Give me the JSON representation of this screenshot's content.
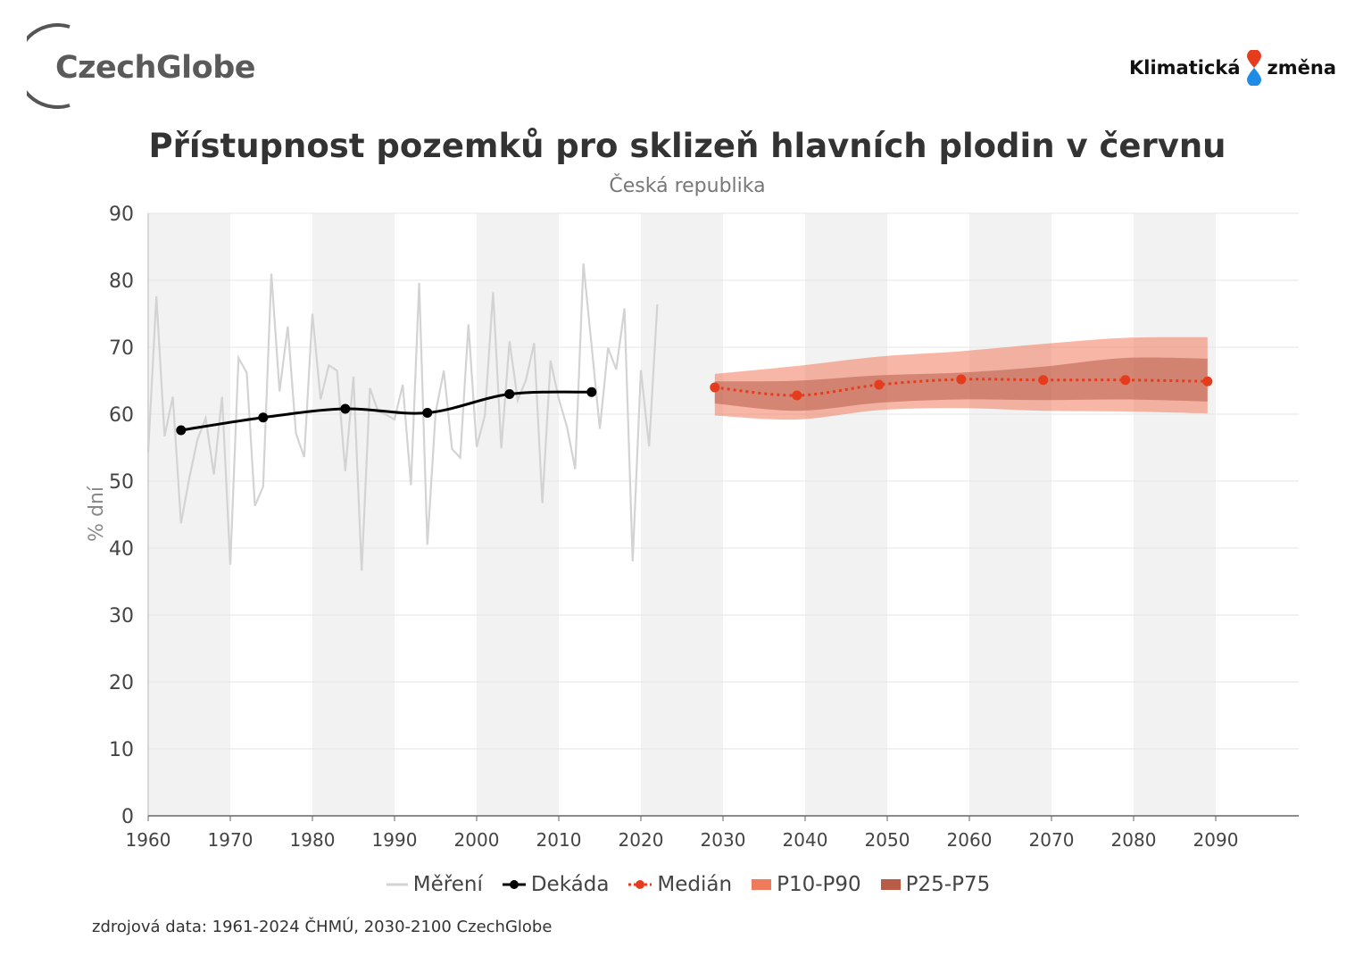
{
  "logos": {
    "left_text": "CzechGlobe",
    "right_text_1": "Klimatická",
    "right_text_2": "změna",
    "drop_top_color": "#e63c1e",
    "drop_bottom_color": "#1e8ce6"
  },
  "source_note": "zdrojová data: 1961-2024 ČHMÚ, 2030-2100 CzechGlobe",
  "chart_data": {
    "type": "line",
    "title": "Přístupnost pozemků pro sklizeň hlavních plodin v červnu",
    "subtitle": "Česká republika",
    "ylabel": "% dní",
    "xlabel": "",
    "xlim": [
      1960,
      2100
    ],
    "ylim": [
      0,
      90
    ],
    "x_ticks": [
      1960,
      1970,
      1980,
      1990,
      2000,
      2010,
      2020,
      2030,
      2040,
      2050,
      2060,
      2070,
      2080,
      2090
    ],
    "y_ticks": [
      0,
      10,
      20,
      30,
      40,
      50,
      60,
      70,
      80,
      90
    ],
    "grid": true,
    "alternating_decade_bands": true,
    "legend_position": "bottom",
    "legend": [
      "Měření",
      "Dekáda",
      "Medián",
      "P10-P90",
      "P25-P75"
    ],
    "series": [
      {
        "name": "Měření",
        "color": "#d3d3d3",
        "x": [
          1961,
          1962,
          1963,
          1964,
          1965,
          1966,
          1967,
          1968,
          1969,
          1970,
          1971,
          1972,
          1973,
          1974,
          1975,
          1976,
          1977,
          1978,
          1979,
          1980,
          1981,
          1982,
          1983,
          1984,
          1985,
          1986,
          1987,
          1988,
          1989,
          1990,
          1991,
          1992,
          1993,
          1994,
          1995,
          1996,
          1997,
          1998,
          1999,
          2000,
          2001,
          2002,
          2003,
          2004,
          2005,
          2006,
          2007,
          2008,
          2009,
          2010,
          2011,
          2012,
          2013,
          2014,
          2015,
          2016,
          2017,
          2018,
          2019,
          2020,
          2021,
          2022,
          2023
        ],
        "values": [
          54.3,
          77.6,
          56.7,
          62.6,
          43.7,
          50.4,
          56.2,
          59.4,
          51.0,
          62.6,
          37.5,
          68.4,
          66.2,
          46.3,
          49.2,
          81.0,
          63.4,
          73.1,
          57.1,
          53.6,
          75.0,
          62.2,
          67.3,
          66.5,
          51.5,
          65.6,
          36.6,
          63.9,
          60.4,
          59.9,
          59.2,
          64.4,
          49.4,
          79.6,
          40.5,
          60.2,
          66.5,
          54.8,
          53.5,
          73.4,
          55.1,
          59.8,
          78.2,
          54.9,
          70.9,
          62.1,
          65.1,
          70.6,
          46.7,
          68.0,
          62.3,
          58.1,
          51.8,
          82.5,
          70.2,
          57.8,
          69.9,
          66.7,
          75.8,
          38.0,
          66.6,
          55.2,
          76.4
        ]
      },
      {
        "name": "Dekáda",
        "color": "#000000",
        "x": [
          1965,
          1975,
          1985,
          1995,
          2005,
          2015
        ],
        "values": [
          57.6,
          59.5,
          60.8,
          60.2,
          63.0,
          63.3
        ]
      },
      {
        "name": "Medián",
        "color": "#e63c1e",
        "x": [
          2030,
          2040,
          2050,
          2060,
          2070,
          2080,
          2090
        ],
        "values": [
          64.0,
          62.8,
          64.4,
          65.2,
          65.1,
          65.1,
          64.9
        ]
      }
    ],
    "bands": [
      {
        "name": "P10-P90",
        "color": "#f07a5c",
        "x": [
          2030,
          2040,
          2050,
          2060,
          2070,
          2080,
          2090
        ],
        "lower": [
          59.8,
          59.2,
          60.6,
          60.9,
          60.5,
          60.4,
          60.1
        ],
        "upper": [
          66.0,
          67.2,
          68.6,
          69.4,
          70.5,
          71.4,
          71.5
        ]
      },
      {
        "name": "P25-P75",
        "color": "#b85c48",
        "x": [
          2030,
          2040,
          2050,
          2060,
          2070,
          2080,
          2090
        ],
        "lower": [
          61.6,
          60.5,
          61.7,
          62.2,
          62.1,
          62.2,
          61.9
        ],
        "upper": [
          64.9,
          65.0,
          65.8,
          66.2,
          67.1,
          68.4,
          68.3
        ]
      }
    ]
  }
}
